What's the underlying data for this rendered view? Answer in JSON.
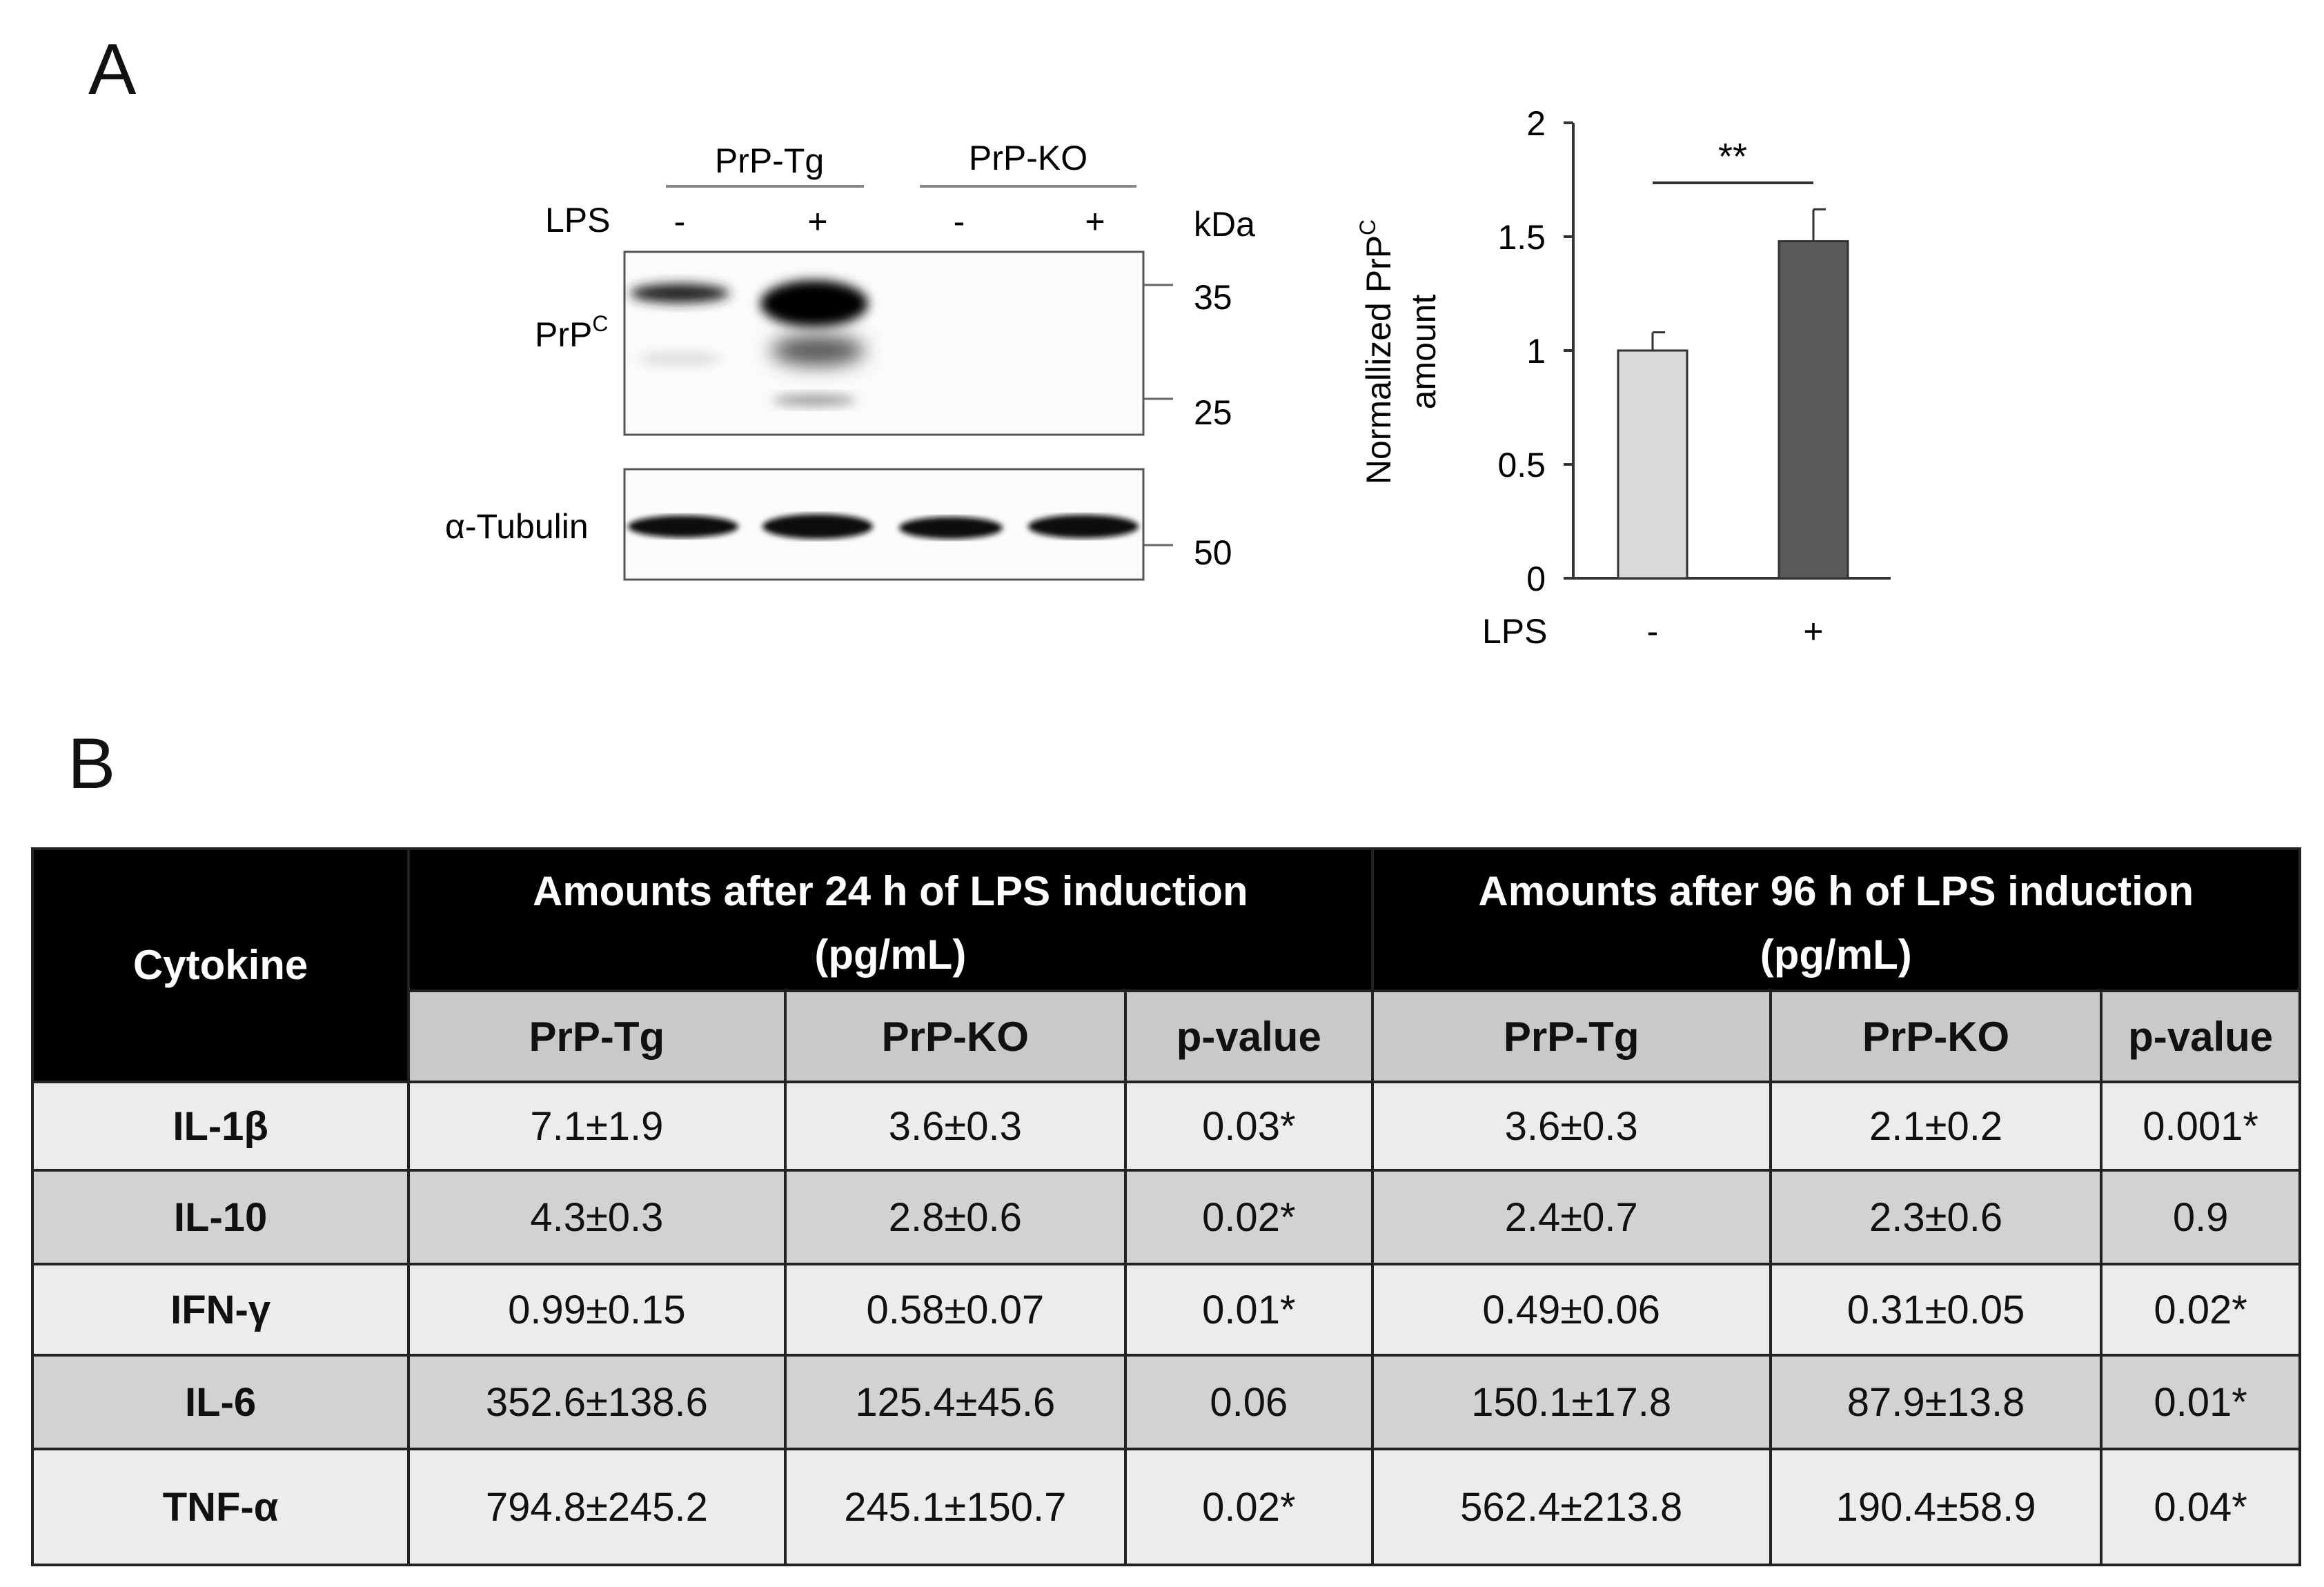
{
  "panel_a": {
    "letter": "A",
    "blot": {
      "group_labels": [
        "PrP-Tg",
        "PrP-KO"
      ],
      "lps_label": "LPS",
      "lps_signs": [
        "-",
        "+",
        "-",
        "+"
      ],
      "kda_label": "kDa",
      "protein_label_main": "PrP",
      "protein_label_sup": "C",
      "tubulin_label": "α-Tubulin",
      "markers": [
        "35",
        "25",
        "50"
      ]
    }
  },
  "chart_data": {
    "type": "bar",
    "categories": [
      "-",
      "+"
    ],
    "values": [
      1.0,
      1.48
    ],
    "errors": [
      0.08,
      0.14
    ],
    "bar_colors": [
      "#d9d9d9",
      "#595959"
    ],
    "ylabel_main": "Normallized PrP",
    "ylabel_sup": "C",
    "ylabel_line2": "amount",
    "xlabel": "LPS",
    "ylim": [
      0,
      2
    ],
    "yticks": [
      "0",
      "0.5",
      "1",
      "1.5",
      "2"
    ],
    "significance": "**"
  },
  "panel_b": {
    "letter": "B",
    "table": {
      "cytokine_header": "Cytokine",
      "group_24h_line1": "Amounts after 24 h of LPS induction",
      "group_24h_line2": "(pg/mL)",
      "group_96h_line1": "Amounts after 96 h of LPS induction",
      "group_96h_line2": "(pg/mL)",
      "subheaders": [
        "PrP-Tg",
        "PrP-KO",
        "p-value",
        "PrP-Tg",
        "PrP-KO",
        "p-value"
      ],
      "rows": [
        {
          "name": "IL-1β",
          "cells": [
            "7.1±1.9",
            "3.6±0.3",
            "0.03*",
            "3.6±0.3",
            "2.1±0.2",
            "0.001*"
          ]
        },
        {
          "name": "IL-10",
          "cells": [
            "4.3±0.3",
            "2.8±0.6",
            "0.02*",
            "2.4±0.7",
            "2.3±0.6",
            "0.9"
          ]
        },
        {
          "name": "IFN-γ",
          "cells": [
            "0.99±0.15",
            "0.58±0.07",
            "0.01*",
            "0.49±0.06",
            "0.31±0.05",
            "0.02*"
          ]
        },
        {
          "name": "IL-6",
          "cells": [
            "352.6±138.6",
            "125.4±45.6",
            "0.06",
            "150.1±17.8",
            "87.9±13.8",
            "0.01*"
          ]
        },
        {
          "name": "TNF-α",
          "cells": [
            "794.8±245.2",
            "245.1±150.7",
            "0.02*",
            "562.4±213.8",
            "190.4±58.9",
            "0.04*"
          ]
        }
      ]
    }
  }
}
